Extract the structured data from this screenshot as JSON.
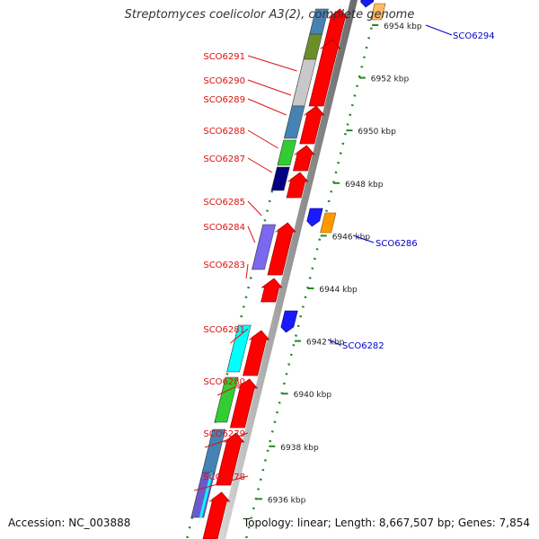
{
  "title": "Streptomyces coelicolor A3(2), complete genome",
  "accession_text": "Accession: NC_003888",
  "summary_text": "Topology: linear; Length: 8,667,507 bp; Genes: 7,854",
  "colors": {
    "left_label": "#dd1111",
    "right_label": "#0000cc",
    "tick": "#228822",
    "backbone": "#9a9a9a",
    "forward_gene": "#ff0000",
    "reverse_gene": "#1a1aff"
  },
  "scale_ticks": [
    {
      "label": "6954 kbp",
      "kbp": 6954
    },
    {
      "label": "6952 kbp",
      "kbp": 6952
    },
    {
      "label": "6950 kbp",
      "kbp": 6950
    },
    {
      "label": "6948 kbp",
      "kbp": 6948
    },
    {
      "label": "6946 kbp",
      "kbp": 6946
    },
    {
      "label": "6944 kbp",
      "kbp": 6944
    },
    {
      "label": "6942 kbp",
      "kbp": 6942
    },
    {
      "label": "6940 kbp",
      "kbp": 6940
    },
    {
      "label": "6938 kbp",
      "kbp": 6938
    },
    {
      "label": "6936 kbp",
      "kbp": 6936
    }
  ],
  "left_genes": [
    {
      "label": "SCO6291",
      "color": "#6a8f2a"
    },
    {
      "label": "SCO6290",
      "color": "#c8c8c8"
    },
    {
      "label": "SCO6289",
      "color": "#4682b4"
    },
    {
      "label": "SCO6288",
      "color": "#32cd32"
    },
    {
      "label": "SCO6287",
      "color": "#000080"
    },
    {
      "label": "SCO6285",
      "color": "#ffffff"
    },
    {
      "label": "SCO6284",
      "color": "#7b68ee"
    },
    {
      "label": "SCO6283",
      "color": "#ffffff"
    },
    {
      "label": "SCO6281",
      "color": "#00ffff"
    },
    {
      "label": "SCO6280",
      "color": "#32cd32"
    },
    {
      "label": "SCO6279",
      "color": "#4682b4"
    },
    {
      "label": "SCO6278",
      "color": "#6a5acd"
    }
  ],
  "right_genes": [
    {
      "label": "SCO6294",
      "color": "#ffa500"
    },
    {
      "label": "SCO6286",
      "color": "#ff8c00"
    },
    {
      "label": "SCO6282",
      "color": "#ffffff"
    }
  ]
}
